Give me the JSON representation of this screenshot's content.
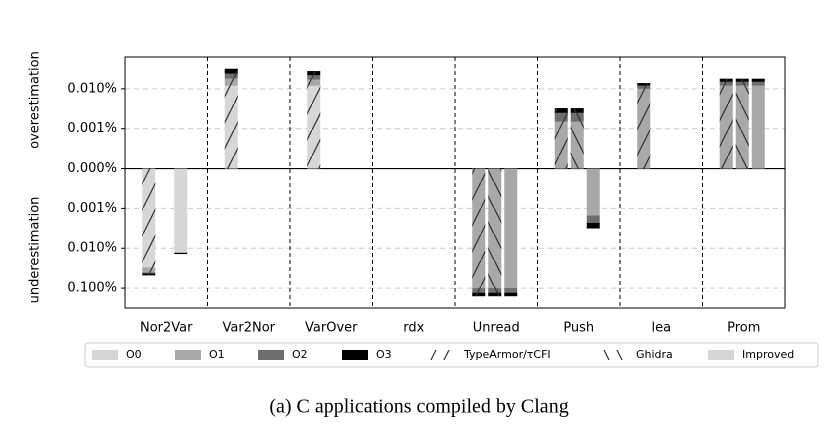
{
  "chart_data": {
    "type": "stacked-bar",
    "caption": "(a) C applications compiled by Clang",
    "ylabel_over": "overestimation",
    "ylabel_under": "underestimation",
    "yscale": "symlog",
    "linthresh": 0.001,
    "ylim": [
      -0.316,
      0.063
    ],
    "yticks": [
      {
        "value": -0.1,
        "label": "0.100%"
      },
      {
        "value": -0.01,
        "label": "0.010%"
      },
      {
        "value": -0.001,
        "label": "0.001%"
      },
      {
        "value": 0,
        "label": "0.000%"
      },
      {
        "value": 0.001,
        "label": "0.001%"
      },
      {
        "value": 0.01,
        "label": "0.010%"
      }
    ],
    "grid": true,
    "categories": [
      "Nor2Var",
      "Var2Nor",
      "VarOver",
      "rdx",
      "Unread",
      "Push",
      "lea",
      "Prom"
    ],
    "levels": [
      {
        "name": "O0",
        "color": "#d6d6d6"
      },
      {
        "name": "O1",
        "color": "#a8a8a8"
      },
      {
        "name": "O2",
        "color": "#6e6e6e"
      },
      {
        "name": "O3",
        "color": "#000000"
      }
    ],
    "series": [
      {
        "name": "TypeArmor/τCFI",
        "hatch": "forward",
        "over": [
          null,
          [
            0.012,
            0.006,
            0.006,
            0.008
          ],
          [
            0.012,
            0.005,
            0.005,
            0.006
          ],
          null,
          null,
          [
            0,
            0.0015,
            0.001,
            0.0008
          ],
          [
            0,
            0.01,
            0.002,
            0.002
          ],
          [
            0,
            0.012,
            0.003,
            0.003
          ]
        ],
        "under": [
          [
            -0.03,
            -0.01,
            -0.003,
            -0.005
          ],
          null,
          null,
          null,
          [
            0,
            -0.1,
            -0.03,
            -0.03
          ],
          null,
          null,
          null
        ]
      },
      {
        "name": "Ghidra",
        "hatch": "backward",
        "over": [
          null,
          null,
          null,
          null,
          null,
          [
            0,
            0.0015,
            0.001,
            0.0008
          ],
          null,
          [
            0,
            0.012,
            0.003,
            0.003
          ]
        ],
        "under": [
          null,
          null,
          null,
          null,
          [
            0,
            -0.1,
            -0.03,
            -0.03
          ],
          null,
          null,
          null
        ]
      },
      {
        "name": "Improved",
        "hatch": "none",
        "color": "#d6d6d6",
        "over": [
          null,
          null,
          null,
          null,
          null,
          null,
          null,
          [
            0,
            0.012,
            0.003,
            0.003
          ]
        ],
        "under": [
          [
            -0.013,
            0,
            0,
            -0.001
          ],
          null,
          null,
          null,
          [
            0,
            -0.1,
            -0.03,
            -0.03
          ],
          [
            0,
            -0.0015,
            -0.0008,
            -0.0009
          ],
          null,
          null
        ]
      }
    ]
  }
}
